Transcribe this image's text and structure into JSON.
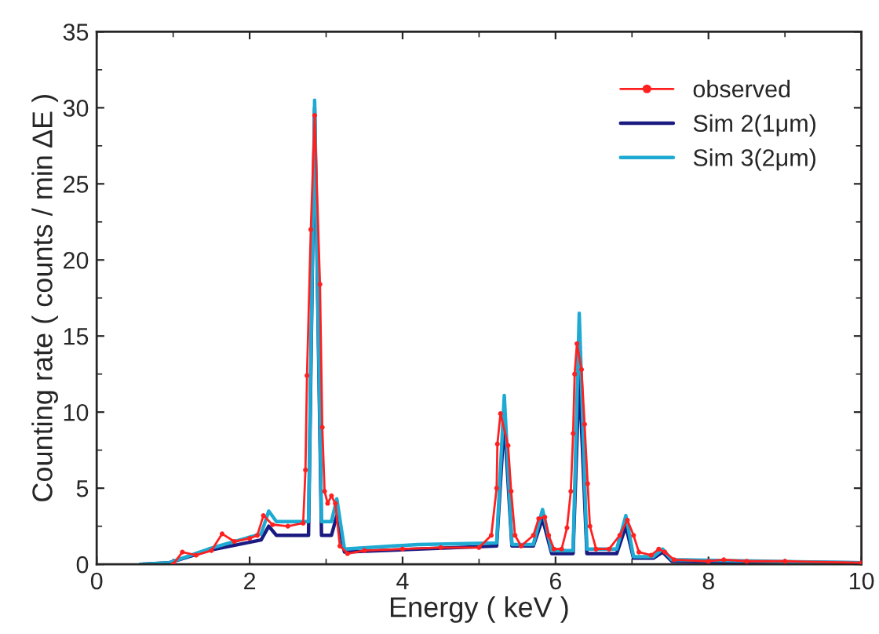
{
  "chart_data": {
    "type": "line",
    "xlabel": "Energy ( keV )",
    "ylabel": "Counting rate ( counts / min ΔE )",
    "xlim": [
      0,
      10
    ],
    "xticks": [
      0,
      2,
      4,
      6,
      8,
      10
    ],
    "ylim": [
      0,
      35
    ],
    "yticks": [
      0,
      5,
      10,
      15,
      20,
      25,
      30,
      35
    ],
    "grid": false,
    "legend": "top right",
    "series": [
      {
        "name": "observed",
        "color": "#ff2020",
        "marker": "circle",
        "line_style": "solid",
        "x": [
          1.0,
          1.12,
          1.3,
          1.5,
          1.64,
          1.8,
          2.0,
          2.1,
          2.18,
          2.3,
          2.5,
          2.7,
          2.73,
          2.75,
          2.8,
          2.85,
          2.92,
          2.95,
          2.98,
          3.02,
          3.07,
          3.12,
          3.18,
          3.28,
          3.5,
          4.0,
          4.5,
          5.0,
          5.16,
          5.23,
          5.24,
          5.28,
          5.38,
          5.42,
          5.47,
          5.55,
          5.71,
          5.78,
          5.86,
          5.91,
          5.98,
          6.08,
          6.15,
          6.2,
          6.23,
          6.25,
          6.28,
          6.34,
          6.38,
          6.42,
          6.45,
          6.53,
          6.7,
          6.84,
          6.94,
          7.02,
          7.09,
          7.25,
          7.35,
          7.43,
          7.55,
          8.0,
          8.2,
          8.5,
          9.0,
          10.0
        ],
        "values": [
          0,
          0.8,
          0.6,
          0.9,
          2.0,
          1.5,
          1.7,
          1.9,
          3.2,
          2.6,
          2.5,
          2.7,
          6.2,
          12.4,
          22.0,
          29.5,
          18.4,
          9.0,
          4.8,
          4.0,
          4.5,
          4.0,
          1.2,
          0.7,
          0.9,
          1.0,
          1.1,
          1.1,
          1.9,
          5.0,
          7.9,
          9.9,
          7.8,
          4.8,
          1.9,
          1.2,
          1.9,
          3.0,
          3.1,
          1.9,
          1.0,
          1.0,
          2.4,
          4.8,
          8.6,
          12.5,
          14.5,
          12.8,
          9.2,
          5.3,
          2.5,
          1.0,
          1.0,
          1.9,
          2.9,
          1.9,
          0.8,
          0.6,
          1.0,
          0.8,
          0.3,
          0.2,
          0.3,
          0.2,
          0.2,
          0.1
        ]
      },
      {
        "name": "Sim 2(1μm)",
        "color": "#1a1a80",
        "marker": "none",
        "line_style": "solid",
        "x": [
          0.57,
          0.95,
          1.46,
          2.15,
          2.25,
          2.35,
          2.77,
          2.85,
          2.94,
          3.07,
          3.14,
          3.24,
          4.2,
          5.23,
          5.33,
          5.43,
          5.71,
          5.83,
          5.95,
          6.23,
          6.31,
          6.41,
          6.8,
          6.92,
          7.02,
          7.28,
          7.4,
          7.52,
          10.0
        ],
        "values": [
          0,
          0.1,
          0.9,
          1.6,
          2.5,
          1.9,
          1.9,
          30.0,
          1.9,
          1.9,
          3.2,
          0.8,
          1.0,
          1.2,
          9.5,
          1.2,
          1.2,
          3.0,
          0.7,
          0.7,
          12.6,
          0.7,
          0.7,
          2.5,
          0.4,
          0.4,
          0.8,
          0.2,
          0.1
        ]
      },
      {
        "name": "Sim 3(2μm)",
        "color": "#1eaad2",
        "marker": "none",
        "line_style": "solid",
        "x": [
          0.57,
          0.95,
          1.46,
          2.15,
          2.25,
          2.35,
          2.77,
          2.85,
          2.94,
          3.07,
          3.14,
          3.24,
          4.2,
          5.23,
          5.33,
          5.43,
          5.71,
          5.83,
          5.95,
          6.23,
          6.31,
          6.41,
          6.8,
          6.92,
          7.02,
          7.28,
          7.4,
          7.52,
          10.0
        ],
        "values": [
          0,
          0.1,
          1.0,
          2.0,
          3.5,
          2.8,
          2.8,
          30.5,
          2.8,
          2.8,
          4.3,
          1.0,
          1.3,
          1.4,
          11.1,
          1.3,
          1.3,
          3.6,
          0.9,
          0.9,
          16.5,
          1.0,
          1.0,
          3.2,
          0.5,
          0.5,
          1.0,
          0.3,
          0.1
        ]
      }
    ]
  }
}
